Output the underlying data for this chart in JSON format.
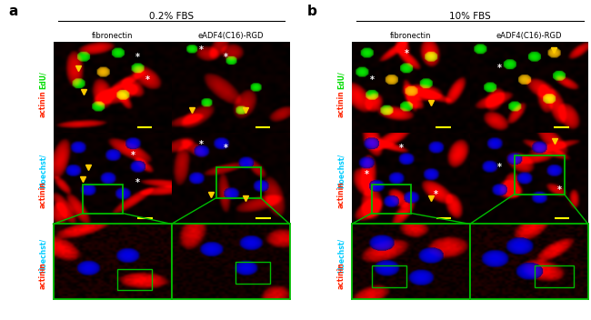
{
  "panel_a_title": "0.2% FBS",
  "panel_b_title": "10% FBS",
  "col_labels": [
    "fibronectin",
    "eADF4(C16)-RGD"
  ],
  "panel_a_label": "a",
  "panel_b_label": "b",
  "bg_color": "#ffffff",
  "figsize": [
    6.5,
    3.52
  ],
  "dpi": 100,
  "label_edu_color": "#00dd00",
  "label_actinin_color": "#ff2200",
  "label_hoechst_color": "#00ccff",
  "green_box_color": "#00bb00",
  "arrow_color": "#ffcc00",
  "star_color": "#ffffff",
  "scale_bar_color": "#ffff00"
}
